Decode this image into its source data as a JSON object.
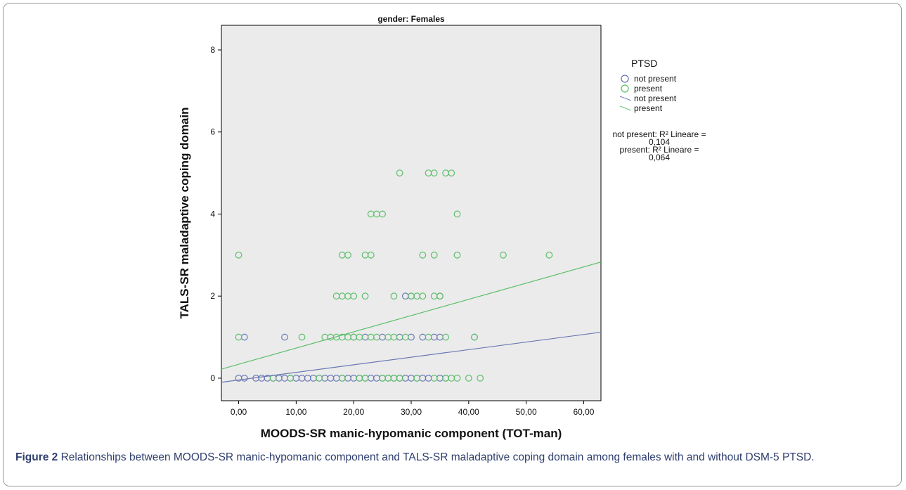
{
  "figure": {
    "caption_label": "Figure 2",
    "caption_text": " Relationships between MOODS-SR manic-hypomanic component and TALS-SR maladaptive coping domain among females with and without DSM-5 PTSD."
  },
  "legend": {
    "title": "PTSD",
    "items": [
      {
        "label": "not present",
        "kind": "marker",
        "color": "#6a78b4"
      },
      {
        "label": "present",
        "kind": "marker",
        "color": "#5cbf6a"
      },
      {
        "label": "not present",
        "kind": "line",
        "color": "#6a78b4"
      },
      {
        "label": "present",
        "kind": "line",
        "color": "#5cbf6a"
      }
    ]
  },
  "r2": {
    "line1": "not present: R² Lineare =",
    "line2": "0,104",
    "line3": "present: R² Lineare =",
    "line4": "0,064"
  },
  "chart_data": {
    "type": "scatter",
    "title": "gender: Females",
    "xlabel": "MOODS-SR manic-hypomanic component (TOT-man)",
    "ylabel": "TALS-SR maladaptive coping domain",
    "xlim": [
      -3,
      63
    ],
    "ylim": [
      -0.55,
      8.6
    ],
    "x_ticks": [
      0,
      10,
      20,
      30,
      40,
      50,
      60
    ],
    "x_tick_labels": [
      "0,00",
      "10,00",
      "20,00",
      "30,00",
      "40,00",
      "50,00",
      "60,00"
    ],
    "y_ticks": [
      0,
      2,
      4,
      6,
      8
    ],
    "y_tick_labels": [
      "0",
      "2",
      "4",
      "6",
      "8"
    ],
    "background": "#ebebeb",
    "series": [
      {
        "name": "not present",
        "color": "#6a78b4",
        "points": [
          [
            0,
            0
          ],
          [
            1,
            0
          ],
          [
            3,
            0
          ],
          [
            4,
            0
          ],
          [
            5,
            0
          ],
          [
            6,
            0
          ],
          [
            7,
            0
          ],
          [
            8,
            0
          ],
          [
            9,
            0
          ],
          [
            10,
            0
          ],
          [
            11,
            0
          ],
          [
            12,
            0
          ],
          [
            13,
            0
          ],
          [
            14,
            0
          ],
          [
            15,
            0
          ],
          [
            16,
            0
          ],
          [
            17,
            0
          ],
          [
            18,
            0
          ],
          [
            19,
            0
          ],
          [
            20,
            0
          ],
          [
            21,
            0
          ],
          [
            22,
            0
          ],
          [
            23,
            0
          ],
          [
            24,
            0
          ],
          [
            25,
            0
          ],
          [
            26,
            0
          ],
          [
            27,
            0
          ],
          [
            28,
            0
          ],
          [
            29,
            0
          ],
          [
            30,
            0
          ],
          [
            31,
            0
          ],
          [
            32,
            0
          ],
          [
            33,
            0
          ],
          [
            35,
            0
          ],
          [
            36,
            0
          ],
          [
            1,
            1
          ],
          [
            8,
            1
          ],
          [
            20,
            1
          ],
          [
            22,
            1
          ],
          [
            25,
            1
          ],
          [
            28,
            1
          ],
          [
            30,
            1
          ],
          [
            32,
            1
          ],
          [
            34,
            1
          ],
          [
            35,
            1
          ],
          [
            41,
            1
          ],
          [
            29,
            2
          ],
          [
            30,
            2
          ],
          [
            35,
            2
          ]
        ],
        "fit": {
          "x": [
            -3,
            63
          ],
          "y": [
            -0.1,
            1.12
          ]
        }
      },
      {
        "name": "present",
        "color": "#5cbf6a",
        "points": [
          [
            0,
            3
          ],
          [
            0,
            1
          ],
          [
            11,
            1
          ],
          [
            15,
            1
          ],
          [
            16,
            1
          ],
          [
            17,
            1
          ],
          [
            18,
            1
          ],
          [
            19,
            1
          ],
          [
            20,
            1
          ],
          [
            21,
            1
          ],
          [
            23,
            1
          ],
          [
            24,
            1
          ],
          [
            26,
            1
          ],
          [
            27,
            1
          ],
          [
            29,
            1
          ],
          [
            33,
            1
          ],
          [
            36,
            1
          ],
          [
            41,
            1
          ],
          [
            17,
            2
          ],
          [
            18,
            2
          ],
          [
            19,
            2
          ],
          [
            20,
            2
          ],
          [
            22,
            2
          ],
          [
            27,
            2
          ],
          [
            30,
            2
          ],
          [
            31,
            2
          ],
          [
            32,
            2
          ],
          [
            34,
            2
          ],
          [
            35,
            2
          ],
          [
            18,
            3
          ],
          [
            19,
            3
          ],
          [
            22,
            3
          ],
          [
            23,
            3
          ],
          [
            32,
            3
          ],
          [
            34,
            3
          ],
          [
            38,
            3
          ],
          [
            46,
            3
          ],
          [
            54,
            3
          ],
          [
            23,
            4
          ],
          [
            24,
            4
          ],
          [
            25,
            4
          ],
          [
            38,
            4
          ],
          [
            28,
            5
          ],
          [
            33,
            5
          ],
          [
            34,
            5
          ],
          [
            36,
            5
          ],
          [
            37,
            5
          ],
          [
            6,
            0
          ],
          [
            9,
            0
          ],
          [
            14,
            0
          ],
          [
            18,
            0
          ],
          [
            21,
            0
          ],
          [
            22,
            0
          ],
          [
            25,
            0
          ],
          [
            26,
            0
          ],
          [
            27,
            0
          ],
          [
            28,
            0
          ],
          [
            31,
            0
          ],
          [
            34,
            0
          ],
          [
            36,
            0
          ],
          [
            37,
            0
          ],
          [
            38,
            0
          ],
          [
            40,
            0
          ],
          [
            42,
            0
          ]
        ],
        "fit": {
          "x": [
            -3,
            63
          ],
          "y": [
            0.22,
            2.83
          ]
        }
      }
    ]
  }
}
